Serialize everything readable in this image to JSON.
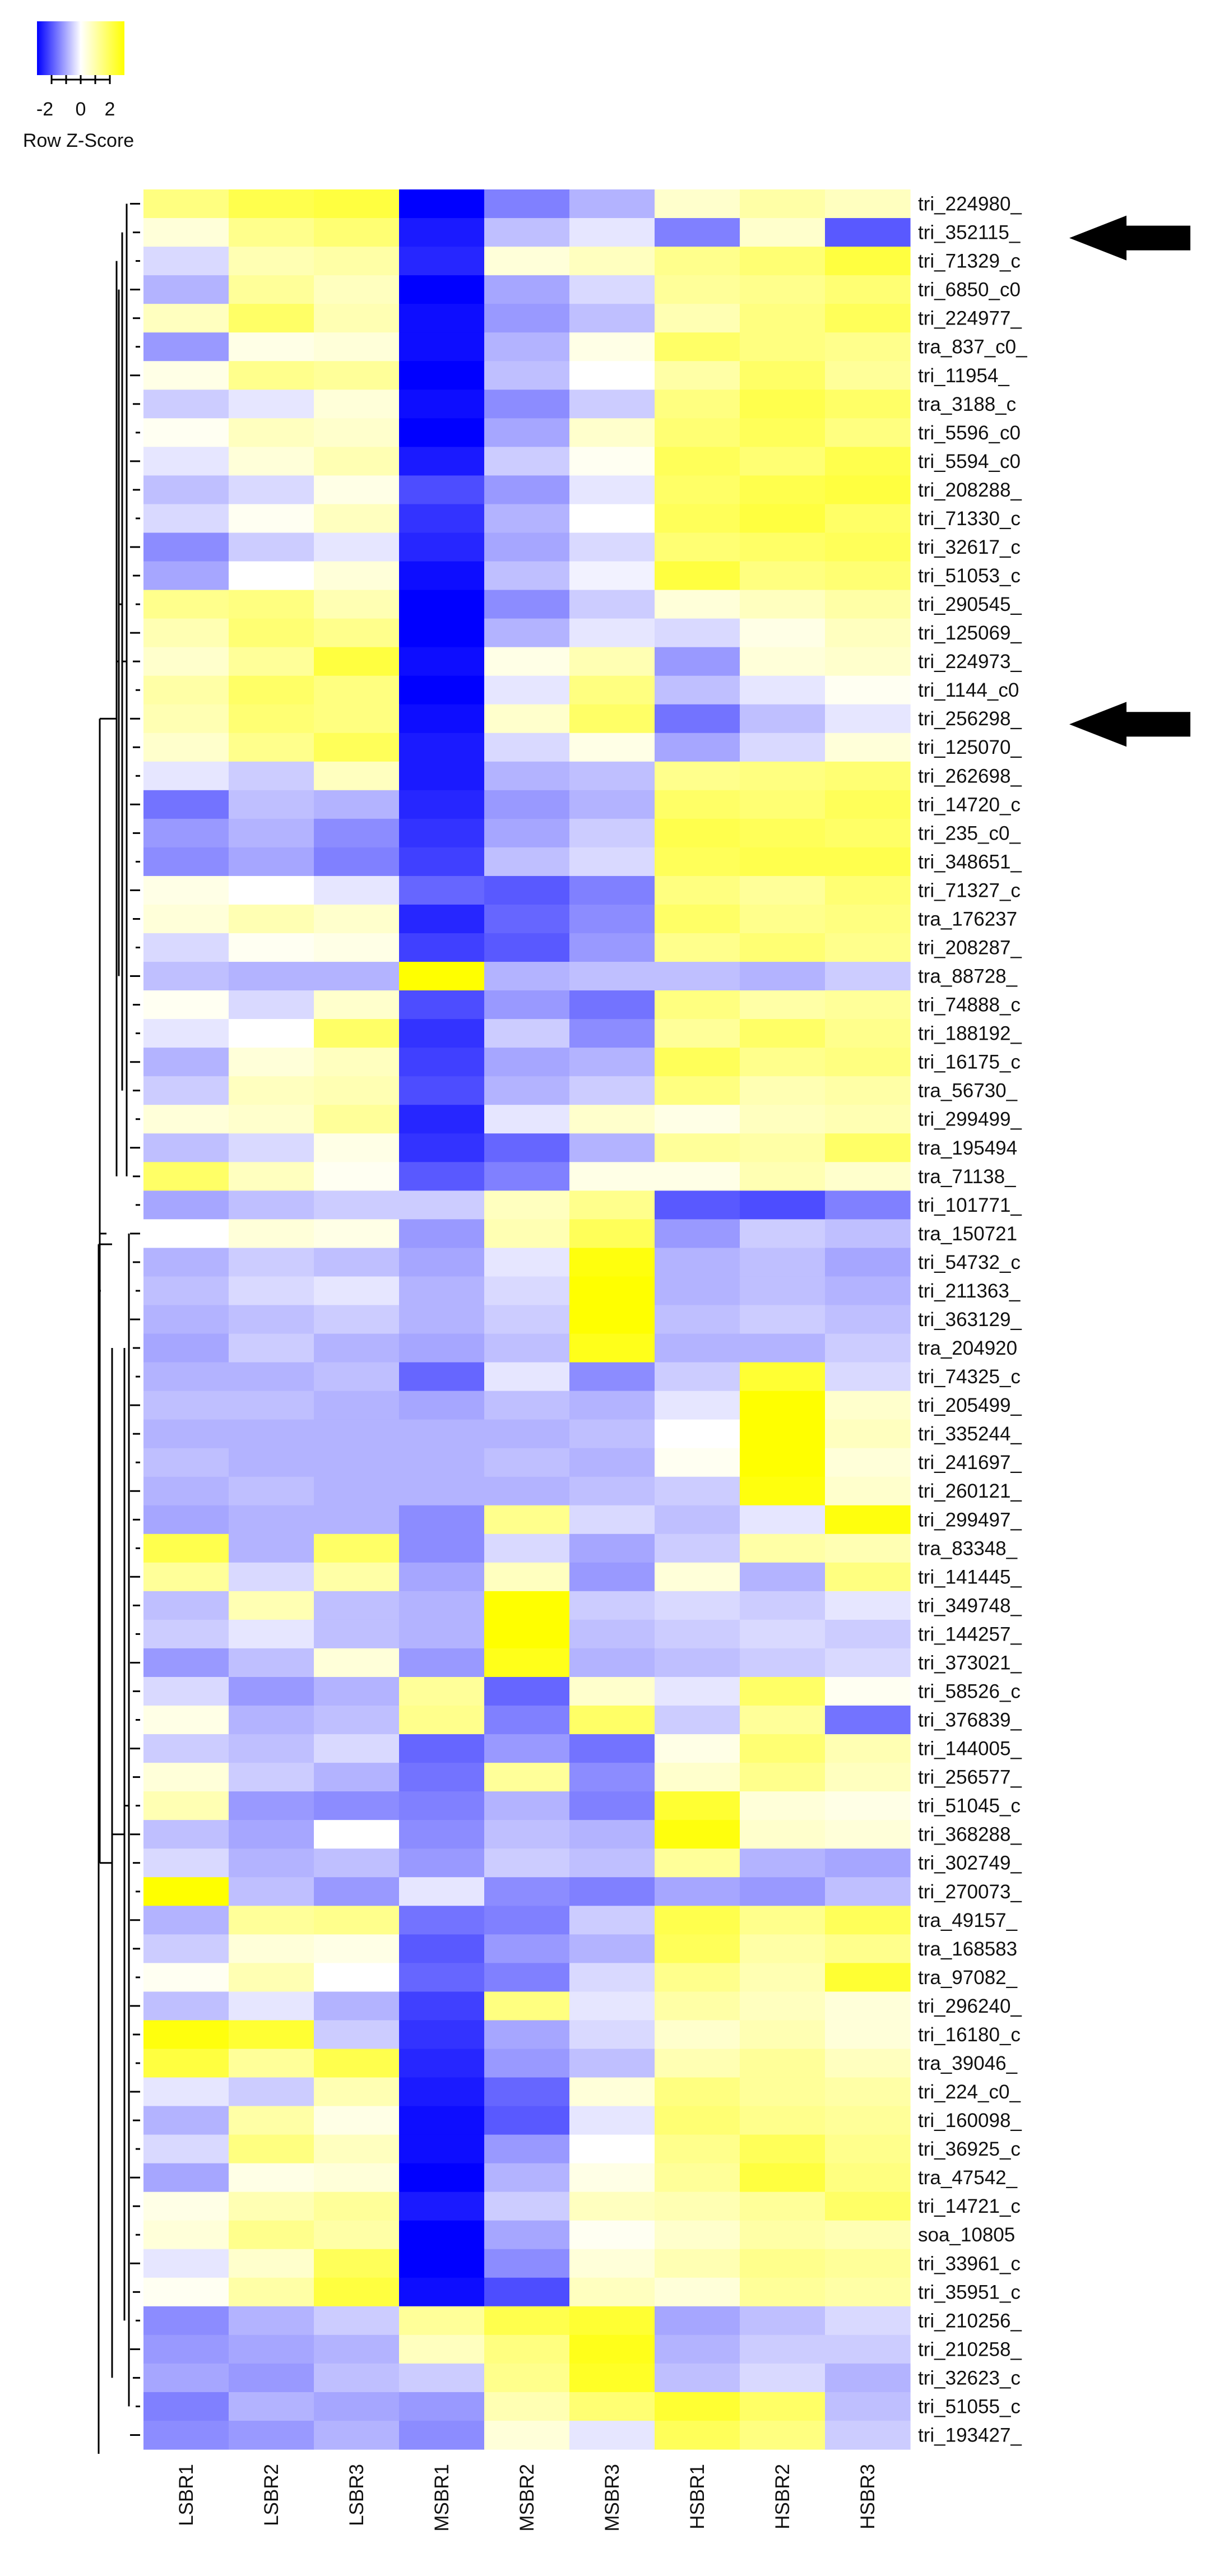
{
  "color_key": {
    "title": "Row Z-Score",
    "ticks": [
      "-2",
      "0",
      "2"
    ],
    "low_color": "#0000ff",
    "mid_color": "#ffffff",
    "high_color": "#ffff00"
  },
  "arrows": [
    {
      "row": 1,
      "icon": "left-arrow-icon"
    },
    {
      "row": 18,
      "icon": "left-arrow-icon"
    }
  ],
  "chart_data": {
    "type": "heatmap",
    "columns": [
      "LSBR1",
      "LSBR2",
      "LSBR3",
      "MSBR1",
      "MSBR2",
      "MSBR3",
      "HSBR1",
      "HSBR2",
      "HSBR3"
    ],
    "row_labels": [
      "tri_224980_",
      "tri_352115_",
      "tri_71329_c",
      "tri_6850_c0",
      "tri_224977_",
      "tra_837_c0_",
      "tri_11954_",
      "tra_3188_c",
      "tri_5596_c0",
      "tri_5594_c0",
      "tri_208288_",
      "tri_71330_c",
      "tri_32617_c",
      "tri_51053_c",
      "tri_290545_",
      "tri_125069_",
      "tri_224973_",
      "tri_1144_c0",
      "tri_256298_",
      "tri_125070_",
      "tri_262698_",
      "tri_14720_c",
      "tri_235_c0_",
      "tri_348651_",
      "tri_71327_c",
      "tra_176237",
      "tri_208287_",
      "tra_88728_",
      "tri_74888_c",
      "tri_188192_",
      "tri_16175_c",
      "tra_56730_",
      "tri_299499_",
      "tra_195494",
      "tra_71138_",
      "tri_101771_",
      "tra_150721",
      "tri_54732_c",
      "tri_211363_",
      "tri_363129_",
      "tra_204920",
      "tri_74325_c",
      "tri_205499_",
      "tri_335244_",
      "tri_241697_",
      "tri_260121_",
      "tri_299497_",
      "tra_83348_",
      "tri_141445_",
      "tri_349748_",
      "tri_144257_",
      "tri_373021_",
      "tri_58526_c",
      "tri_376839_",
      "tri_144005_",
      "tri_256577_",
      "tri_51045_c",
      "tri_368288_",
      "tri_302749_",
      "tri_270073_",
      "tra_49157_",
      "tra_168583",
      "tra_97082_",
      "tri_296240_",
      "tri_16180_c",
      "tra_39046_",
      "tri_224_c0_",
      "tri_160098_",
      "tri_36925_c",
      "tra_47542_",
      "tri_14721_c",
      "soa_10805",
      "tri_33961_c",
      "tri_35951_c",
      "tri_210256_",
      "tri_210258_",
      "tri_32623_c",
      "tri_51055_c",
      "tri_193427_"
    ],
    "values": [
      [
        1.0,
        1.4,
        1.5,
        -2.0,
        -1.0,
        -0.6,
        0.4,
        0.7,
        0.5
      ],
      [
        0.3,
        0.9,
        1.1,
        -1.8,
        -0.5,
        -0.2,
        -1.0,
        0.4,
        -1.3
      ],
      [
        -0.3,
        0.6,
        0.7,
        -1.7,
        0.3,
        0.5,
        0.9,
        1.1,
        1.5
      ],
      [
        -0.6,
        0.8,
        0.5,
        -2.0,
        -0.7,
        -0.3,
        0.8,
        0.9,
        1.1
      ],
      [
        0.5,
        1.2,
        0.6,
        -1.9,
        -0.8,
        -0.5,
        0.6,
        1.0,
        1.3
      ],
      [
        -0.8,
        0.2,
        0.3,
        -1.9,
        -0.6,
        0.2,
        1.2,
        1.0,
        0.9
      ],
      [
        0.2,
        0.9,
        0.8,
        -2.0,
        -0.5,
        0.0,
        0.7,
        1.2,
        0.8
      ],
      [
        -0.4,
        -0.2,
        0.3,
        -1.9,
        -0.9,
        -0.4,
        1.0,
        1.4,
        1.2
      ],
      [
        0.1,
        0.5,
        0.4,
        -2.0,
        -0.7,
        0.4,
        1.1,
        1.3,
        1.0
      ],
      [
        -0.2,
        0.3,
        0.6,
        -1.8,
        -0.4,
        0.1,
        1.3,
        1.1,
        1.4
      ],
      [
        -0.5,
        -0.3,
        0.2,
        -1.4,
        -0.8,
        -0.2,
        1.2,
        1.4,
        1.5
      ],
      [
        -0.3,
        0.1,
        0.5,
        -1.6,
        -0.6,
        0.0,
        1.3,
        1.5,
        1.2
      ],
      [
        -0.9,
        -0.4,
        -0.2,
        -1.7,
        -0.7,
        -0.3,
        1.1,
        1.2,
        1.3
      ],
      [
        -0.7,
        0.0,
        0.3,
        -1.9,
        -0.5,
        -0.1,
        1.5,
        1.0,
        1.1
      ],
      [
        0.9,
        1.0,
        0.6,
        -2.0,
        -0.9,
        -0.4,
        0.3,
        0.5,
        0.7
      ],
      [
        0.6,
        1.1,
        0.9,
        -2.0,
        -0.6,
        -0.2,
        -0.3,
        0.2,
        0.5
      ],
      [
        0.4,
        0.8,
        1.5,
        -1.9,
        0.2,
        0.6,
        -0.8,
        0.3,
        0.4
      ],
      [
        0.7,
        1.2,
        1.0,
        -2.0,
        -0.2,
        1.0,
        -0.5,
        -0.2,
        0.1
      ],
      [
        0.6,
        1.1,
        1.0,
        -1.9,
        0.4,
        1.2,
        -1.1,
        -0.5,
        -0.2
      ],
      [
        0.4,
        0.9,
        1.3,
        -1.8,
        -0.3,
        0.2,
        -0.7,
        -0.3,
        0.3
      ],
      [
        -0.2,
        -0.4,
        0.5,
        -1.8,
        -0.6,
        -0.5,
        0.9,
        1.0,
        1.1
      ],
      [
        -1.1,
        -0.5,
        -0.6,
        -1.7,
        -0.8,
        -0.6,
        1.2,
        1.1,
        1.3
      ],
      [
        -0.8,
        -0.6,
        -0.9,
        -1.6,
        -0.7,
        -0.4,
        1.4,
        1.3,
        1.2
      ],
      [
        -0.9,
        -0.7,
        -1.0,
        -1.5,
        -0.5,
        -0.3,
        1.3,
        1.4,
        1.4
      ],
      [
        0.2,
        0.0,
        -0.2,
        -1.2,
        -1.3,
        -1.0,
        1.0,
        0.8,
        1.1
      ],
      [
        0.3,
        0.6,
        0.4,
        -1.7,
        -1.2,
        -0.9,
        1.2,
        0.9,
        1.0
      ],
      [
        -0.3,
        0.1,
        0.2,
        -1.5,
        -1.3,
        -0.8,
        0.9,
        1.1,
        0.9
      ],
      [
        -0.5,
        -0.6,
        -0.6,
        2.0,
        -0.6,
        -0.5,
        -0.5,
        -0.6,
        -0.4
      ],
      [
        0.1,
        -0.3,
        0.4,
        -1.4,
        -0.8,
        -1.1,
        1.0,
        0.7,
        0.8
      ],
      [
        -0.2,
        0.0,
        1.2,
        -1.6,
        -0.4,
        -0.9,
        0.8,
        1.2,
        0.9
      ],
      [
        -0.6,
        0.3,
        0.5,
        -1.5,
        -0.7,
        -0.6,
        1.3,
        0.9,
        1.0
      ],
      [
        -0.4,
        0.5,
        0.6,
        -1.4,
        -0.6,
        -0.4,
        1.0,
        0.6,
        0.7
      ],
      [
        0.3,
        0.4,
        0.8,
        -1.7,
        -0.2,
        0.4,
        0.2,
        0.5,
        0.6
      ],
      [
        -0.5,
        -0.3,
        0.2,
        -1.6,
        -1.2,
        -0.6,
        0.8,
        0.7,
        1.2
      ],
      [
        1.2,
        0.5,
        0.1,
        -1.3,
        -1.0,
        0.2,
        0.2,
        0.6,
        0.4
      ],
      [
        -0.7,
        -0.5,
        -0.4,
        -0.4,
        0.5,
        0.9,
        -1.3,
        -1.4,
        -1.0
      ],
      [
        0.0,
        0.3,
        0.2,
        -0.8,
        0.6,
        1.3,
        -0.8,
        -0.4,
        -0.5
      ],
      [
        -0.6,
        -0.4,
        -0.5,
        -0.7,
        -0.2,
        1.9,
        -0.6,
        -0.5,
        -0.7
      ],
      [
        -0.5,
        -0.3,
        -0.2,
        -0.6,
        -0.3,
        2.0,
        -0.6,
        -0.5,
        -0.6
      ],
      [
        -0.6,
        -0.5,
        -0.4,
        -0.6,
        -0.4,
        2.0,
        -0.5,
        -0.4,
        -0.5
      ],
      [
        -0.7,
        -0.4,
        -0.6,
        -0.7,
        -0.5,
        1.8,
        -0.6,
        -0.6,
        -0.4
      ],
      [
        -0.6,
        -0.6,
        -0.5,
        -1.2,
        -0.2,
        -0.9,
        -0.4,
        1.6,
        -0.3
      ],
      [
        -0.5,
        -0.5,
        -0.6,
        -0.7,
        -0.5,
        -0.6,
        -0.2,
        2.0,
        0.4
      ],
      [
        -0.6,
        -0.6,
        -0.6,
        -0.6,
        -0.6,
        -0.5,
        0.0,
        2.0,
        0.5
      ],
      [
        -0.5,
        -0.6,
        -0.6,
        -0.6,
        -0.5,
        -0.6,
        0.1,
        2.0,
        0.3
      ],
      [
        -0.6,
        -0.5,
        -0.6,
        -0.6,
        -0.6,
        -0.5,
        -0.4,
        1.9,
        0.4
      ],
      [
        -0.7,
        -0.6,
        -0.6,
        -0.9,
        0.9,
        -0.3,
        -0.5,
        -0.2,
        1.9
      ],
      [
        1.4,
        -0.6,
        1.2,
        -0.9,
        -0.3,
        -0.7,
        -0.4,
        0.7,
        0.6
      ],
      [
        0.8,
        -0.3,
        0.7,
        -0.7,
        0.5,
        -0.8,
        0.3,
        -0.6,
        1.0
      ],
      [
        -0.5,
        0.6,
        -0.5,
        -0.6,
        2.0,
        -0.4,
        -0.3,
        -0.4,
        -0.2
      ],
      [
        -0.4,
        -0.2,
        -0.5,
        -0.6,
        2.0,
        -0.5,
        -0.4,
        -0.3,
        -0.4
      ],
      [
        -0.8,
        -0.5,
        0.3,
        -0.8,
        1.8,
        -0.6,
        -0.5,
        -0.4,
        -0.3
      ],
      [
        -0.3,
        -0.8,
        -0.6,
        0.8,
        -1.2,
        0.4,
        -0.2,
        1.2,
        0.1
      ],
      [
        0.2,
        -0.6,
        -0.5,
        0.9,
        -1.0,
        1.2,
        -0.4,
        0.8,
        -1.1
      ],
      [
        -0.4,
        -0.5,
        -0.3,
        -1.2,
        -0.8,
        -1.1,
        0.2,
        1.1,
        0.6
      ],
      [
        0.3,
        -0.4,
        -0.6,
        -1.1,
        0.8,
        -0.9,
        0.4,
        0.9,
        0.5
      ],
      [
        0.6,
        -0.8,
        -0.9,
        -1.0,
        -0.6,
        -1.0,
        1.6,
        0.3,
        0.2
      ],
      [
        -0.5,
        -0.7,
        0.0,
        -0.9,
        -0.5,
        -0.6,
        1.9,
        0.4,
        0.3
      ],
      [
        -0.3,
        -0.6,
        -0.5,
        -0.8,
        -0.4,
        -0.5,
        0.8,
        -0.6,
        -0.7
      ],
      [
        2.0,
        -0.5,
        -0.8,
        -0.2,
        -0.9,
        -1.0,
        -0.7,
        -0.8,
        -0.5
      ],
      [
        -0.6,
        0.8,
        0.9,
        -1.1,
        -1.0,
        -0.4,
        1.4,
        0.9,
        1.3
      ],
      [
        -0.4,
        0.3,
        0.2,
        -1.3,
        -0.8,
        -0.6,
        1.3,
        0.7,
        0.9
      ],
      [
        0.1,
        0.6,
        0.0,
        -1.2,
        -1.0,
        -0.3,
        0.9,
        0.6,
        1.6
      ],
      [
        -0.5,
        -0.2,
        -0.6,
        -1.5,
        1.0,
        -0.2,
        0.7,
        0.5,
        0.3
      ],
      [
        1.9,
        1.6,
        -0.4,
        -1.6,
        -0.7,
        -0.3,
        0.4,
        0.6,
        0.3
      ],
      [
        1.5,
        0.8,
        1.4,
        -1.7,
        -0.8,
        -0.5,
        0.6,
        0.8,
        0.5
      ],
      [
        -0.2,
        -0.4,
        0.6,
        -1.8,
        -1.2,
        0.3,
        1.0,
        0.8,
        0.7
      ],
      [
        -0.6,
        0.7,
        0.2,
        -1.9,
        -1.3,
        -0.2,
        1.1,
        0.9,
        0.8
      ],
      [
        -0.3,
        1.0,
        0.5,
        -1.9,
        -0.8,
        0.0,
        0.9,
        1.3,
        0.9
      ],
      [
        -0.7,
        0.2,
        0.3,
        -2.0,
        -0.6,
        0.2,
        0.8,
        1.5,
        1.0
      ],
      [
        0.2,
        0.6,
        0.8,
        -1.8,
        -0.4,
        0.5,
        0.6,
        0.8,
        1.2
      ],
      [
        0.3,
        0.9,
        0.7,
        -2.0,
        -0.7,
        0.1,
        0.4,
        0.7,
        0.6
      ],
      [
        -0.2,
        0.4,
        1.3,
        -2.0,
        -0.9,
        0.3,
        0.6,
        0.9,
        0.8
      ],
      [
        0.1,
        0.7,
        1.5,
        -1.9,
        -1.4,
        0.5,
        0.3,
        0.8,
        0.7
      ],
      [
        -0.9,
        -0.6,
        -0.4,
        0.8,
        1.4,
        1.6,
        -0.7,
        -0.5,
        -0.3
      ],
      [
        -0.8,
        -0.7,
        -0.6,
        0.5,
        1.0,
        1.8,
        -0.6,
        -0.4,
        -0.4
      ],
      [
        -0.7,
        -0.8,
        -0.5,
        -0.4,
        0.9,
        1.7,
        -0.5,
        -0.3,
        -0.6
      ],
      [
        -1.0,
        -0.6,
        -0.7,
        -0.8,
        0.6,
        1.1,
        1.6,
        1.2,
        -0.5
      ],
      [
        -0.9,
        -0.8,
        -0.6,
        -0.9,
        0.3,
        -0.2,
        1.3,
        1.0,
        -0.4
      ]
    ]
  }
}
